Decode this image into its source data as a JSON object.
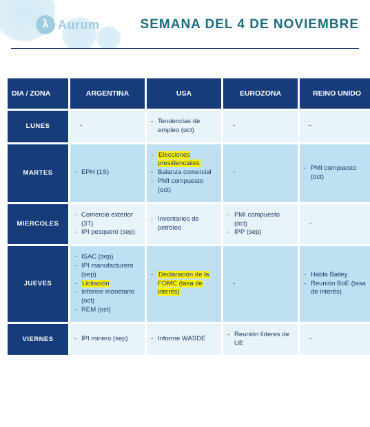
{
  "brand": {
    "mark_glyph": "λ",
    "name": "Aurum"
  },
  "title": "SEMANA DEL 4 DE NOVIEMBRE",
  "colors": {
    "header_bg": "#163d7a",
    "row_odd_bg": "#e9f4fa",
    "row_even_bg": "#bfe0f2",
    "highlight_bg": "#fff200",
    "title_color": "#1b6b7a",
    "text_color": "#1b3a6b",
    "logo_tint": "#9fcde0"
  },
  "columns": [
    "DIA / ZONA",
    "ARGENTINA",
    "USA",
    "EUROZONA",
    "REINO UNIDO"
  ],
  "days": [
    "LUNES",
    "MARTES",
    "MIERCOLES",
    "JUEVES",
    "VIERNES"
  ],
  "cells": {
    "lunes": {
      "argentina": [],
      "usa": [
        {
          "text": "Tendencias de empleo (oct)"
        }
      ],
      "eurozona": [],
      "reino_unido": []
    },
    "martes": {
      "argentina": [
        {
          "text": "EPH (1S)"
        }
      ],
      "usa": [
        {
          "text": "Elecciones presidenciales",
          "hl": true
        },
        {
          "text": "Balanza comercial"
        },
        {
          "text": "PMI compuesto (oct)"
        }
      ],
      "eurozona": [],
      "reino_unido": [
        {
          "text": "PMI compuesto (oct)"
        }
      ]
    },
    "miercoles": {
      "argentina": [
        {
          "text": "Comercio exterior (3T)"
        },
        {
          "text": "IPI pesquero (sep)"
        }
      ],
      "usa": [
        {
          "text": "Inventarios de petróleo"
        }
      ],
      "eurozona": [
        {
          "text": "PMI compuesto (oct)"
        },
        {
          "text": "IPP (sep)"
        }
      ],
      "reino_unido": []
    },
    "jueves": {
      "argentina": [
        {
          "text": "ISAC (sep)"
        },
        {
          "text": "IPI manufacturero (sep)"
        },
        {
          "text": "Licitación",
          "hl": true
        },
        {
          "text": "Informe monetario (oct)"
        },
        {
          "text": "REM (oct)"
        }
      ],
      "usa": [
        {
          "text": "Declaración de la FOMC (tasa de interés)",
          "hl": true
        }
      ],
      "eurozona": [],
      "reino_unido": [
        {
          "text": "Habla Bailey"
        },
        {
          "text": "Reunión BoE (tasa de interés)"
        }
      ]
    },
    "viernes": {
      "argentina": [
        {
          "text": "IPI minero (sep)"
        }
      ],
      "usa": [
        {
          "text": "Informe WASDE"
        }
      ],
      "eurozona": [
        {
          "text": "Reunión líderes de UE"
        }
      ],
      "reino_unido": []
    }
  }
}
